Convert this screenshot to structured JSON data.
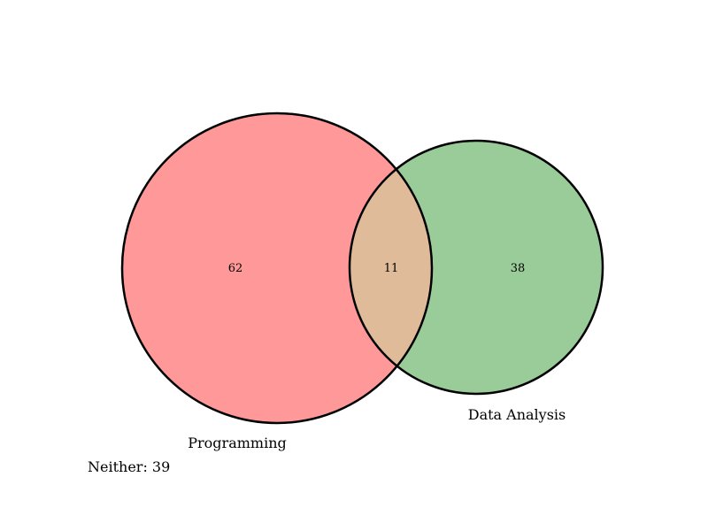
{
  "venn": {
    "sets": [
      {
        "label": "Programming",
        "only_count": "62",
        "color": "#ff9999"
      },
      {
        "label": "Data Analysis",
        "only_count": "38",
        "color": "#99cc99"
      }
    ],
    "intersection": {
      "count": "11",
      "color": "#dfbb99"
    },
    "neither": {
      "text": "Neither: 39",
      "count": 39
    },
    "outline_color": "#000000"
  }
}
